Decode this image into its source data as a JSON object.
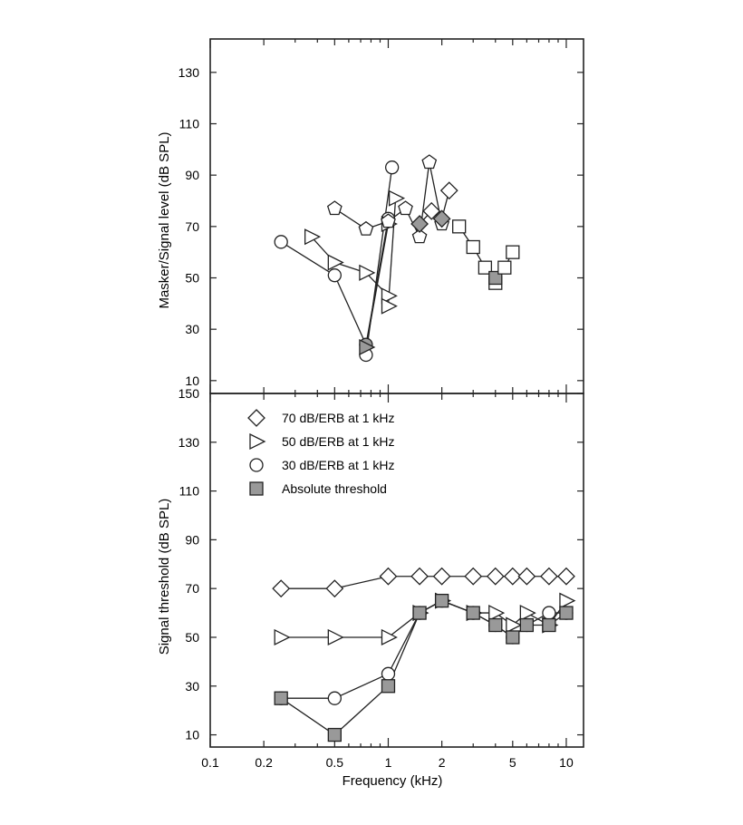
{
  "chart_data": [
    {
      "id": "top",
      "type": "scatter",
      "ylabel": "Masker/Signal level (dB SPL)",
      "xlabel": "",
      "xscale": "log",
      "xlim": [
        0.1,
        12.5
      ],
      "ylim": [
        5,
        143
      ],
      "yticks": [
        10,
        30,
        50,
        70,
        90,
        110,
        130
      ],
      "grid": false,
      "series": [
        {
          "marker": "circle",
          "points": [
            {
              "x": 0.25,
              "y": 64,
              "filled": false
            },
            {
              "x": 0.5,
              "y": 51,
              "filled": false
            },
            {
              "x": 0.75,
              "y": 24,
              "filled": true
            },
            {
              "x": 0.75,
              "y": 20,
              "filled": false
            },
            {
              "x": 1.0,
              "y": 73,
              "filled": false
            },
            {
              "x": 1.05,
              "y": 93,
              "filled": false
            }
          ],
          "segments": [
            [
              0,
              1
            ],
            [
              1,
              2
            ],
            [
              2,
              4
            ],
            [
              3,
              5
            ]
          ]
        },
        {
          "marker": "triangle-right",
          "points": [
            {
              "x": 0.37,
              "y": 66,
              "filled": false
            },
            {
              "x": 0.5,
              "y": 56,
              "filled": false
            },
            {
              "x": 0.75,
              "y": 52,
              "filled": false
            },
            {
              "x": 0.75,
              "y": 23,
              "filled": true
            },
            {
              "x": 1.0,
              "y": 71,
              "filled": false
            },
            {
              "x": 1.0,
              "y": 43,
              "filled": false
            },
            {
              "x": 1.0,
              "y": 39,
              "filled": false
            },
            {
              "x": 1.1,
              "y": 81,
              "filled": false
            }
          ],
          "segments": [
            [
              0,
              1
            ],
            [
              1,
              2
            ],
            [
              2,
              5
            ],
            [
              3,
              4
            ],
            [
              6,
              7
            ]
          ]
        },
        {
          "marker": "pentagon",
          "points": [
            {
              "x": 0.5,
              "y": 77,
              "filled": false
            },
            {
              "x": 0.75,
              "y": 69,
              "filled": false
            },
            {
              "x": 1.0,
              "y": 72,
              "filled": false
            },
            {
              "x": 1.25,
              "y": 77,
              "filled": false
            },
            {
              "x": 1.5,
              "y": 66,
              "filled": false
            },
            {
              "x": 1.7,
              "y": 95,
              "filled": false
            },
            {
              "x": 2.0,
              "y": 71,
              "filled": false
            }
          ],
          "segments": [
            [
              0,
              1
            ],
            [
              1,
              2
            ],
            [
              2,
              3
            ],
            [
              3,
              4
            ],
            [
              4,
              5
            ],
            [
              5,
              6
            ]
          ]
        },
        {
          "marker": "diamond",
          "points": [
            {
              "x": 1.5,
              "y": 71,
              "filled": true
            },
            {
              "x": 1.75,
              "y": 76,
              "filled": false
            },
            {
              "x": 2.0,
              "y": 73,
              "filled": true
            },
            {
              "x": 2.2,
              "y": 84,
              "filled": false
            }
          ],
          "segments": [
            [
              0,
              1
            ],
            [
              1,
              2
            ],
            [
              2,
              3
            ]
          ]
        },
        {
          "marker": "square",
          "points": [
            {
              "x": 2.5,
              "y": 70,
              "filled": false
            },
            {
              "x": 3.0,
              "y": 62,
              "filled": false
            },
            {
              "x": 3.5,
              "y": 54,
              "filled": false
            },
            {
              "x": 4.0,
              "y": 48,
              "filled": false
            },
            {
              "x": 4.0,
              "y": 50,
              "filled": true
            },
            {
              "x": 4.5,
              "y": 54,
              "filled": false
            },
            {
              "x": 5.0,
              "y": 60,
              "filled": false
            }
          ],
          "segments": [
            [
              0,
              1
            ],
            [
              1,
              2
            ],
            [
              2,
              3
            ],
            [
              4,
              5
            ],
            [
              5,
              6
            ]
          ]
        }
      ]
    },
    {
      "id": "bottom",
      "type": "line",
      "ylabel": "Signal threshold (dB SPL)",
      "xlabel": "Frequency (kHz)",
      "xscale": "log",
      "xlim": [
        0.1,
        12.5
      ],
      "ylim": [
        5,
        150
      ],
      "yticks": [
        10,
        30,
        50,
        70,
        90,
        110,
        130,
        150
      ],
      "xticks": [
        0.1,
        0.2,
        0.5,
        1,
        2,
        5,
        10
      ],
      "xticklabels": [
        "0.1",
        "0.2",
        "0.5",
        "1",
        "2",
        "5",
        "10"
      ],
      "grid": false,
      "legend_position": "top-left",
      "series": [
        {
          "name": "70 dB/ERB at 1 kHz",
          "marker": "diamond",
          "filled": false,
          "x": [
            0.25,
            0.5,
            1,
            1.5,
            2,
            3,
            4,
            5,
            6,
            8,
            10
          ],
          "y": [
            70,
            70,
            75,
            75,
            75,
            75,
            75,
            75,
            75,
            75,
            75
          ]
        },
        {
          "name": "50 dB/ERB at 1 kHz",
          "marker": "triangle-right",
          "filled": false,
          "x": [
            0.25,
            0.5,
            1,
            1.5,
            2,
            3,
            4,
            5,
            6,
            8,
            10
          ],
          "y": [
            50,
            50,
            50,
            60,
            65,
            60,
            60,
            55,
            60,
            55,
            65
          ]
        },
        {
          "name": "30 dB/ERB at 1 kHz",
          "marker": "circle",
          "filled": false,
          "x": [
            0.25,
            0.5,
            1,
            1.5,
            2,
            3,
            4,
            5,
            6,
            8,
            10
          ],
          "y": [
            25,
            25,
            35,
            60,
            65,
            60,
            55,
            50,
            55,
            60,
            60
          ]
        },
        {
          "name": "Absolute threshold",
          "marker": "square",
          "filled": true,
          "x": [
            0.25,
            0.5,
            1,
            1.5,
            2,
            3,
            4,
            5,
            6,
            8,
            10
          ],
          "y": [
            25,
            10,
            30,
            60,
            65,
            60,
            55,
            50,
            55,
            55,
            60
          ]
        }
      ]
    }
  ],
  "colors": {
    "stroke": "#222222",
    "fill_marker": "#999999",
    "open_marker": "#ffffff"
  }
}
